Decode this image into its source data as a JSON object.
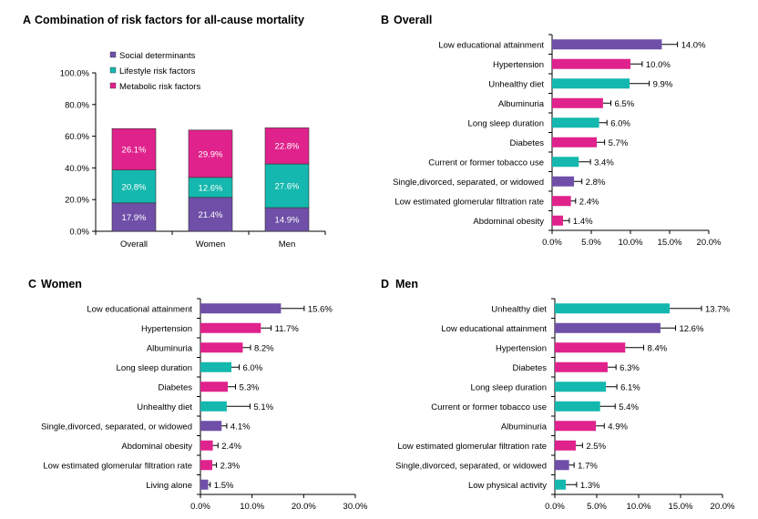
{
  "colors": {
    "social": "#6F4FA8",
    "lifestyle": "#14B8AE",
    "metabolic": "#E0228C",
    "axis": "#000000",
    "error": "#000000"
  },
  "chart_data": [
    {
      "panel": "A",
      "type": "bar",
      "stacked": true,
      "title": "Combination of risk factors for all-cause mortality",
      "categories": [
        "Overall",
        "Women",
        "Men"
      ],
      "series": [
        {
          "name": "Social determinants",
          "color_key": "social",
          "values": [
            17.9,
            21.4,
            14.9
          ],
          "labels": [
            "17.9%",
            "21.4%",
            "14.9%"
          ]
        },
        {
          "name": "Lifestyle risk factors",
          "color_key": "lifestyle",
          "values": [
            20.8,
            12.6,
            27.6
          ],
          "labels": [
            "20.8%",
            "12.6%",
            "27.6%"
          ]
        },
        {
          "name": "Metabolic risk factors",
          "color_key": "metabolic",
          "values": [
            26.1,
            29.9,
            22.8
          ],
          "labels": [
            "26.1%",
            "29.9%",
            "22.8%"
          ]
        }
      ],
      "ylim": [
        0,
        100
      ],
      "yticks": [
        0,
        20,
        40,
        60,
        80,
        100
      ],
      "ytick_labels": [
        "0.0%",
        "20.0%",
        "40.0%",
        "60.0%",
        "80.0%",
        "100.0%"
      ],
      "legend": "top-left"
    },
    {
      "panel": "B",
      "type": "bar",
      "orientation": "horizontal",
      "title": "Overall",
      "xlim": [
        0,
        20
      ],
      "xticks": [
        0,
        5,
        10,
        15,
        20
      ],
      "xtick_labels": [
        "0.0%",
        "5.0%",
        "10.0%",
        "15.0%",
        "20.0%"
      ],
      "bars": [
        {
          "category": "Low educational attainment",
          "value": 14.0,
          "err": 2.0,
          "label": "14.0%",
          "group": "social"
        },
        {
          "category": "Hypertension",
          "value": 10.0,
          "err": 1.5,
          "label": "10.0%",
          "group": "metabolic"
        },
        {
          "category": "Unhealthy diet",
          "value": 9.9,
          "err": 2.5,
          "label": "9.9%",
          "group": "lifestyle"
        },
        {
          "category": "Albuminuria",
          "value": 6.5,
          "err": 1.0,
          "label": "6.5%",
          "group": "metabolic"
        },
        {
          "category": "Long sleep duration",
          "value": 6.0,
          "err": 1.0,
          "label": "6.0%",
          "group": "lifestyle"
        },
        {
          "category": "Diabetes",
          "value": 5.7,
          "err": 1.0,
          "label": "5.7%",
          "group": "metabolic"
        },
        {
          "category": "Current or former tobacco use",
          "value": 3.4,
          "err": 1.5,
          "label": "3.4%",
          "group": "lifestyle"
        },
        {
          "category": "Single,divorced, separated, or widowed",
          "value": 2.8,
          "err": 1.0,
          "label": "2.8%",
          "group": "social"
        },
        {
          "category": "Low estimated glomerular filtration rate",
          "value": 2.4,
          "err": 0.6,
          "label": "2.4%",
          "group": "metabolic"
        },
        {
          "category": "Abdominal obesity",
          "value": 1.4,
          "err": 0.8,
          "label": "1.4%",
          "group": "metabolic"
        }
      ]
    },
    {
      "panel": "C",
      "type": "bar",
      "orientation": "horizontal",
      "title": "Women",
      "xlim": [
        0,
        30
      ],
      "xticks": [
        0,
        10,
        20,
        30
      ],
      "xtick_labels": [
        "0.0%",
        "10.0%",
        "20.0%",
        "30.0%"
      ],
      "bars": [
        {
          "category": "Low educational attainment",
          "value": 15.6,
          "err": 4.5,
          "label": "15.6%",
          "group": "social"
        },
        {
          "category": "Hypertension",
          "value": 11.7,
          "err": 2.0,
          "label": "11.7%",
          "group": "metabolic"
        },
        {
          "category": "Albuminuria",
          "value": 8.2,
          "err": 1.5,
          "label": "8.2%",
          "group": "metabolic"
        },
        {
          "category": "Long sleep duration",
          "value": 6.0,
          "err": 1.5,
          "label": "6.0%",
          "group": "lifestyle"
        },
        {
          "category": "Diabetes",
          "value": 5.3,
          "err": 1.5,
          "label": "5.3%",
          "group": "metabolic"
        },
        {
          "category": "Unhealthy diet",
          "value": 5.1,
          "err": 4.5,
          "label": "5.1%",
          "group": "lifestyle"
        },
        {
          "category": "Single,divorced, separated, or widowed",
          "value": 4.1,
          "err": 1.0,
          "label": "4.1%",
          "group": "social"
        },
        {
          "category": "Abdominal obesity",
          "value": 2.4,
          "err": 1.0,
          "label": "2.4%",
          "group": "metabolic"
        },
        {
          "category": "Low estimated glomerular filtration rate",
          "value": 2.3,
          "err": 0.8,
          "label": "2.3%",
          "group": "metabolic"
        },
        {
          "category": "Living alone",
          "value": 1.5,
          "err": 0.4,
          "label": "1.5%",
          "group": "social"
        }
      ]
    },
    {
      "panel": "D",
      "type": "bar",
      "orientation": "horizontal",
      "title": "Men",
      "xlim": [
        0,
        20
      ],
      "xticks": [
        0,
        5,
        10,
        15,
        20
      ],
      "xtick_labels": [
        "0.0%",
        "5.0%",
        "10.0%",
        "15.0%",
        "20.0%"
      ],
      "bars": [
        {
          "category": "Unhealthy diet",
          "value": 13.7,
          "err": 3.8,
          "label": "13.7%",
          "group": "lifestyle"
        },
        {
          "category": "Low educational attainment",
          "value": 12.6,
          "err": 1.8,
          "label": "12.6%",
          "group": "social"
        },
        {
          "category": "Hypertension",
          "value": 8.4,
          "err": 2.2,
          "label": "8.4%",
          "group": "metabolic"
        },
        {
          "category": "Diabetes",
          "value": 6.3,
          "err": 1.0,
          "label": "6.3%",
          "group": "metabolic"
        },
        {
          "category": "Long sleep duration",
          "value": 6.1,
          "err": 1.3,
          "label": "6.1%",
          "group": "lifestyle"
        },
        {
          "category": "Current or former tobacco use",
          "value": 5.4,
          "err": 1.8,
          "label": "5.4%",
          "group": "lifestyle"
        },
        {
          "category": "Albuminuria",
          "value": 4.9,
          "err": 1.0,
          "label": "4.9%",
          "group": "metabolic"
        },
        {
          "category": "Low estimated glomerular filtration rate",
          "value": 2.5,
          "err": 0.8,
          "label": "2.5%",
          "group": "metabolic"
        },
        {
          "category": "Single,divorced, separated, or widowed",
          "value": 1.7,
          "err": 0.6,
          "label": "1.7%",
          "group": "social"
        },
        {
          "category": "Low physical activity",
          "value": 1.3,
          "err": 1.3,
          "label": "1.3%",
          "group": "lifestyle"
        }
      ]
    }
  ]
}
